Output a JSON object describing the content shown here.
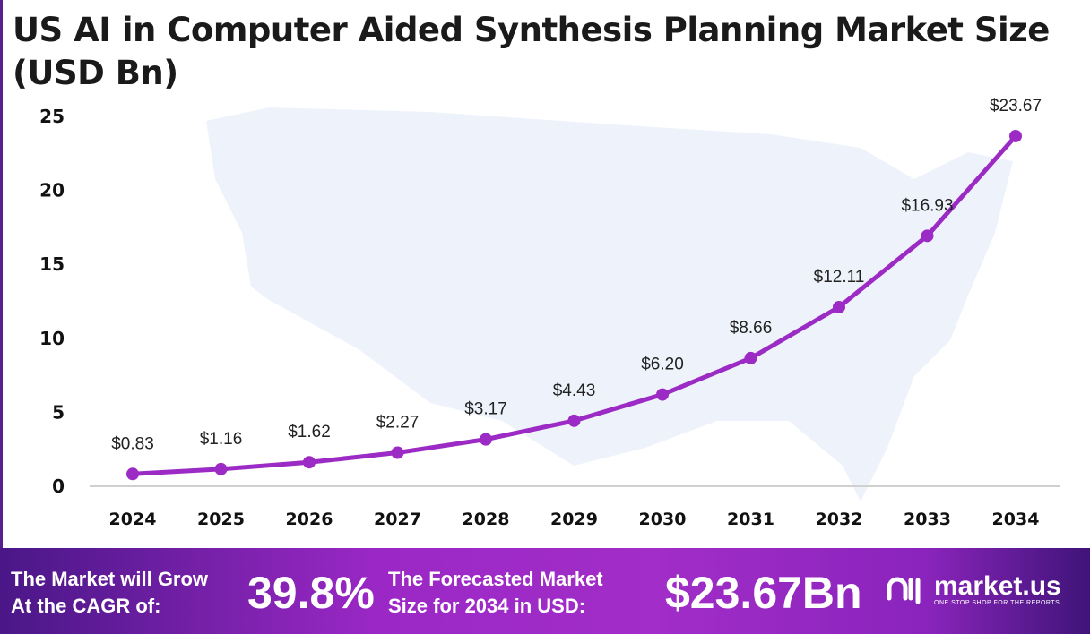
{
  "chart_data": {
    "type": "line",
    "title": "US AI in Computer Aided Synthesis Planning Market Size (USD Bn)",
    "categories": [
      "2024",
      "2025",
      "2026",
      "2027",
      "2028",
      "2029",
      "2030",
      "2031",
      "2032",
      "2033",
      "2034"
    ],
    "values": [
      0.83,
      1.16,
      1.62,
      2.27,
      3.17,
      4.43,
      6.2,
      8.66,
      12.11,
      16.93,
      23.67
    ],
    "data_labels": [
      "$0.83",
      "$1.16",
      "$1.62",
      "$2.27",
      "$3.17",
      "$4.43",
      "$6.20",
      "$8.66",
      "$12.11",
      "$16.93",
      "$23.67"
    ],
    "yticks": [
      "0",
      "5",
      "10",
      "15",
      "20",
      "25"
    ],
    "ylim": [
      0,
      25
    ],
    "xlabel": "",
    "ylabel": "",
    "grid": false,
    "series_color": "#9b2bc4"
  },
  "footer": {
    "cagr_label_line1": "The Market will Grow",
    "cagr_label_line2": "At the CAGR of:",
    "cagr_value": "39.8%",
    "forecast_label_line1": "The Forecasted Market",
    "forecast_label_line2": "Size for 2034 in USD:",
    "forecast_value": "$23.67Bn",
    "logo_text": "market.us",
    "logo_tagline": "ONE STOP SHOP FOR THE REPORTS"
  }
}
